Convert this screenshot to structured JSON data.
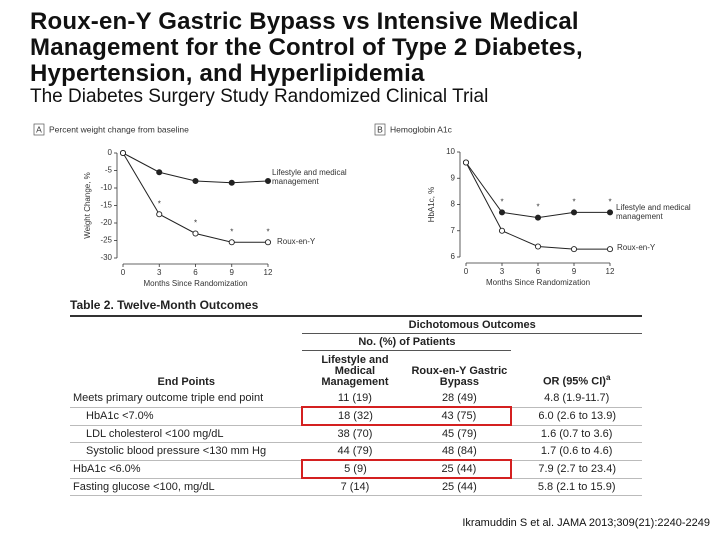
{
  "header": {
    "title_lines": [
      "Roux-en-Y Gastric Bypass vs Intensive Medical",
      "Management for the Control of Type 2 Diabetes,",
      "Hypertension, and Hyperlipidemia"
    ],
    "subtitle": "The Diabetes Surgery Study Randomized Clinical Trial"
  },
  "chart_data": [
    {
      "type": "line",
      "panel": "A",
      "title": "Percent weight change from baseline",
      "ylabel": "Weight Change, %",
      "xlabel": "Months Since Randomization",
      "x": [
        0,
        3,
        6,
        9,
        12
      ],
      "xlim": [
        0,
        12
      ],
      "xticks": [
        0,
        3,
        6,
        9,
        12
      ],
      "ylim": [
        -30,
        0
      ],
      "yticks": [
        0,
        -5,
        -10,
        -15,
        -20,
        -25,
        -30
      ],
      "series": [
        {
          "name": "Lifestyle and medical management",
          "color": "#222222",
          "marker": "filled",
          "values": [
            0,
            -5.5,
            -8,
            -8.5,
            -8
          ]
        },
        {
          "name": "Roux-en-Y",
          "color": "#222222",
          "marker": "open",
          "values": [
            0,
            -17.5,
            -23,
            -25.5,
            -25.5
          ]
        }
      ],
      "significance_marker": "*",
      "significance_series": 1,
      "significance_x": [
        3,
        6,
        9,
        12
      ]
    },
    {
      "type": "line",
      "panel": "B",
      "title": "Hemoglobin A1c",
      "ylabel": "HbA1c, %",
      "xlabel": "Months Since Randomization",
      "x": [
        0,
        3,
        6,
        9,
        12
      ],
      "xlim": [
        0,
        12
      ],
      "xticks": [
        0,
        3,
        6,
        9,
        12
      ],
      "ylim": [
        6,
        10
      ],
      "yticks": [
        6,
        7,
        8,
        9,
        10
      ],
      "series": [
        {
          "name": "Lifestyle and medical management",
          "color": "#222222",
          "marker": "filled",
          "values": [
            9.6,
            7.7,
            7.5,
            7.7,
            7.7
          ]
        },
        {
          "name": "Roux-en-Y",
          "color": "#222222",
          "marker": "open",
          "values": [
            9.6,
            7.0,
            6.4,
            6.3,
            6.3
          ]
        }
      ],
      "significance_marker": "*",
      "significance_series": 0,
      "significance_x": [
        3,
        6,
        9,
        12
      ]
    }
  ],
  "table": {
    "title": "Table 2. Twelve-Month Outcomes",
    "group_header": "Dichotomous Outcomes",
    "subgroup_header": "No. (%) of Patients",
    "columns": [
      "End Points",
      "Lifestyle and Medical Management",
      "Roux-en-Y Gastric Bypass",
      "OR (95% CI)"
    ],
    "or_footnote": "a",
    "rows": [
      [
        "Meets primary outcome triple end point",
        "11 (19)",
        "28 (49)",
        "4.8 (1.9-11.7)"
      ],
      [
        "HbA1c <7.0%",
        "18 (32)",
        "43 (75)",
        "6.0 (2.6 to 13.9)"
      ],
      [
        "LDL cholesterol <100 mg/dL",
        "38 (70)",
        "45 (79)",
        "1.6 (0.7 to 3.6)"
      ],
      [
        "Systolic blood pressure <130 mm Hg",
        "44 (79)",
        "48 (84)",
        "1.7 (0.6 to 4.6)"
      ],
      [
        "HbA1c <6.0%",
        "5 (9)",
        "25 (44)",
        "7.9 (2.7 to 23.4)"
      ],
      [
        "Fasting glucose <100, mg/dL",
        "7 (14)",
        "25 (44)",
        "5.8 (2.1 to 15.9)"
      ]
    ]
  },
  "citation": "Ikramuddin S et al. JAMA 2013;309(21):2240-2249"
}
